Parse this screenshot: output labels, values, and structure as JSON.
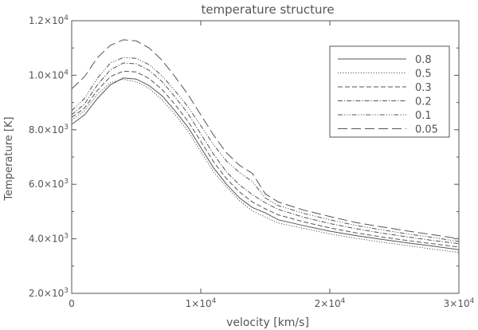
{
  "chart_data": {
    "type": "line",
    "title": "temperature structure",
    "xlabel": "velocity [km/s]",
    "ylabel": "Temperature [K]",
    "xlim": [
      0,
      30000
    ],
    "ylim": [
      2000,
      12000
    ],
    "grid": false,
    "legend_position": "top-right",
    "x_ticks": [
      {
        "value": 0,
        "mant": "0",
        "exp": ""
      },
      {
        "value": 10000,
        "mant": "1×10",
        "exp": "4"
      },
      {
        "value": 20000,
        "mant": "2×10",
        "exp": "4"
      },
      {
        "value": 30000,
        "mant": "3×10",
        "exp": "4"
      }
    ],
    "y_ticks": [
      {
        "value": 2000,
        "mant": "2.0×10",
        "exp": "3"
      },
      {
        "value": 4000,
        "mant": "4.0×10",
        "exp": "3"
      },
      {
        "value": 6000,
        "mant": "6.0×10",
        "exp": "3"
      },
      {
        "value": 8000,
        "mant": "8.0×10",
        "exp": "3"
      },
      {
        "value": 10000,
        "mant": "1.0×10",
        "exp": "4"
      },
      {
        "value": 12000,
        "mant": "1.2×10",
        "exp": "4"
      }
    ],
    "series": [
      {
        "name": "0.8",
        "dash": "",
        "x": [
          0,
          1000,
          2000,
          3000,
          4000,
          5000,
          6000,
          7000,
          8000,
          9000,
          10000,
          11000,
          12000,
          13000,
          14000,
          15000,
          16000,
          18000,
          20000,
          22000,
          24000,
          26000,
          28000,
          30000
        ],
        "y": [
          8200,
          8550,
          9150,
          9650,
          9900,
          9860,
          9620,
          9250,
          8700,
          8100,
          7350,
          6600,
          6000,
          5500,
          5150,
          4950,
          4700,
          4480,
          4280,
          4120,
          3980,
          3850,
          3730,
          3600
        ]
      },
      {
        "name": "0.5",
        "dash": "1.2,2",
        "x": [
          0,
          1000,
          2000,
          3000,
          4000,
          5000,
          6000,
          7000,
          8000,
          9000,
          10000,
          11000,
          12000,
          13000,
          14000,
          15000,
          16000,
          18000,
          20000,
          22000,
          24000,
          26000,
          28000,
          30000
        ],
        "y": [
          8350,
          8700,
          9300,
          9730,
          9850,
          9760,
          9520,
          9100,
          8560,
          7950,
          7200,
          6450,
          5900,
          5400,
          5020,
          4800,
          4580,
          4380,
          4180,
          4020,
          3880,
          3750,
          3620,
          3500
        ]
      },
      {
        "name": "0.3",
        "dash": "6,3",
        "x": [
          0,
          1000,
          2000,
          3000,
          4000,
          5000,
          6000,
          7000,
          8000,
          9000,
          10000,
          11000,
          12000,
          13000,
          14000,
          15000,
          16000,
          18000,
          20000,
          22000,
          24000,
          26000,
          28000,
          30000
        ],
        "y": [
          8450,
          8800,
          9450,
          9950,
          10150,
          10120,
          9880,
          9480,
          8930,
          8320,
          7580,
          6820,
          6200,
          5720,
          5350,
          5100,
          4880,
          4620,
          4400,
          4220,
          4070,
          3940,
          3820,
          3700
        ]
      },
      {
        "name": "0.2",
        "dash": "6,2,1.2,2",
        "x": [
          0,
          1000,
          2000,
          3000,
          4000,
          5000,
          6000,
          7000,
          8000,
          9000,
          10000,
          11000,
          12000,
          13000,
          14000,
          15000,
          16000,
          18000,
          20000,
          22000,
          24000,
          26000,
          28000,
          30000
        ],
        "y": [
          8550,
          8950,
          9650,
          10200,
          10450,
          10420,
          10180,
          9770,
          9210,
          8600,
          7850,
          7100,
          6450,
          5980,
          5620,
          5320,
          5080,
          4790,
          4560,
          4370,
          4210,
          4070,
          3940,
          3820
        ]
      },
      {
        "name": "0.1",
        "dash": "6,2,1.2,2,1.2,2,1.2,2",
        "x": [
          0,
          1000,
          2000,
          3000,
          4000,
          5000,
          6000,
          7000,
          8000,
          9000,
          10000,
          11000,
          12000,
          13000,
          14000,
          15000,
          16000,
          18000,
          20000,
          22000,
          24000,
          26000,
          28000,
          30000
        ],
        "y": [
          8700,
          9150,
          9900,
          10450,
          10650,
          10620,
          10390,
          9980,
          9430,
          8850,
          8150,
          7450,
          6850,
          6430,
          6100,
          5500,
          5220,
          4930,
          4700,
          4490,
          4330,
          4180,
          4050,
          3900
        ]
      },
      {
        "name": "0.05",
        "dash": "12,5",
        "x": [
          0,
          1000,
          2000,
          3000,
          4000,
          5000,
          6000,
          7000,
          8000,
          9000,
          10000,
          11000,
          12000,
          13000,
          14000,
          15000,
          16000,
          18000,
          20000,
          22000,
          24000,
          26000,
          28000,
          30000
        ],
        "y": [
          9500,
          9950,
          10650,
          11100,
          11300,
          11260,
          11000,
          10550,
          9950,
          9300,
          8550,
          7800,
          7150,
          6700,
          6400,
          5650,
          5350,
          5050,
          4820,
          4600,
          4440,
          4290,
          4150,
          4000
        ]
      }
    ]
  }
}
